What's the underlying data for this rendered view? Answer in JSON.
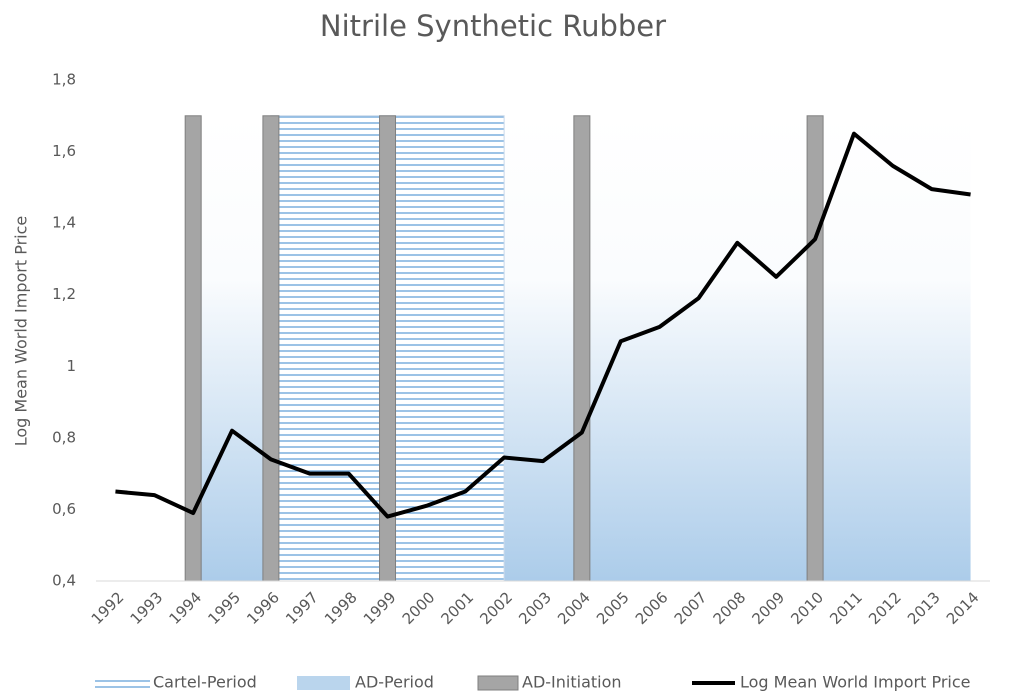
{
  "chart_data": {
    "type": "combo",
    "title": "Nitrile Synthetic Rubber",
    "y_label": "Log Mean World Import Price",
    "categories": [
      "1992",
      "1993",
      "1994",
      "1995",
      "1996",
      "1997",
      "1998",
      "1999",
      "2000",
      "2001",
      "2002",
      "2003",
      "2004",
      "2005",
      "2006",
      "2007",
      "2008",
      "2009",
      "2010",
      "2011",
      "2012",
      "2013",
      "2014"
    ],
    "series": [
      {
        "name": "Cartel-Period",
        "type": "hatch",
        "color": "#5b9bd5",
        "values": [
          null,
          null,
          null,
          null,
          1.7,
          1.7,
          1.7,
          1.7,
          1.7,
          1.7,
          1.7,
          null,
          null,
          null,
          null,
          null,
          null,
          null,
          null,
          null,
          null,
          null,
          null
        ]
      },
      {
        "name": "AD-Period",
        "type": "area",
        "color": "#9dc3e6",
        "values": [
          null,
          null,
          1.7,
          1.7,
          1.7,
          1.7,
          1.7,
          1.7,
          1.7,
          1.7,
          1.7,
          1.7,
          1.7,
          1.7,
          1.7,
          1.7,
          1.7,
          1.7,
          1.7,
          1.7,
          1.7,
          1.7,
          1.7
        ]
      },
      {
        "name": "AD-Initiation",
        "type": "bar",
        "color": "#a5a5a5",
        "values": [
          null,
          null,
          1.7,
          null,
          1.7,
          null,
          null,
          1.7,
          null,
          null,
          null,
          null,
          1.7,
          null,
          null,
          null,
          null,
          null,
          1.7,
          null,
          null,
          null,
          null
        ]
      },
      {
        "name": "Log Mean World Import Price",
        "type": "line",
        "color": "#000000",
        "values": [
          0.65,
          0.64,
          0.59,
          0.82,
          0.74,
          0.7,
          0.7,
          0.58,
          0.61,
          0.65,
          0.745,
          0.735,
          0.815,
          1.07,
          1.11,
          1.19,
          1.345,
          1.25,
          1.355,
          1.65,
          1.56,
          1.495,
          1.48
        ]
      }
    ],
    "ylim": [
      0.4,
      1.8
    ],
    "yticks": [
      {
        "value": 0.4,
        "label": "0,4"
      },
      {
        "value": 0.6,
        "label": "0,6"
      },
      {
        "value": 0.8,
        "label": "0,8"
      },
      1,
      {
        "value": 1.2,
        "label": "1,2"
      },
      {
        "value": 1.4,
        "label": "1,4"
      },
      {
        "value": 1.6,
        "label": "1,6"
      },
      {
        "value": 1.8,
        "label": "1,8"
      }
    ],
    "grid": false,
    "legend": "bottom"
  }
}
